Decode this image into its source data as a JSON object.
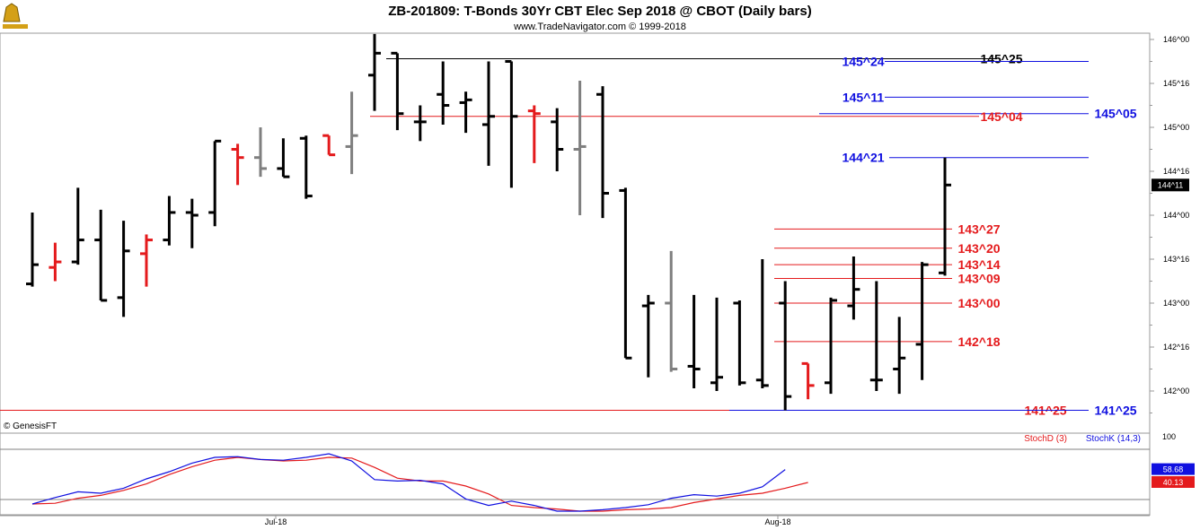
{
  "title": "ZB-201809:  T-Bonds 30Yr CBT Elec Sep 2018 @ CBOT  (Daily bars)",
  "subtitle": "www.TradeNavigator.com © 1999-2018",
  "copyright": "© GenesisFT",
  "colors": {
    "up": "#000000",
    "down": "#e41a1c",
    "flat": "#7f7f7f",
    "red_level": "#e41a1c",
    "blue_level": "#1010e0",
    "stochD": "#e41a1c",
    "stochK": "#1010e0"
  },
  "chart_data": [
    {
      "type": "ohlc",
      "y_unit": "32nds",
      "y_ticks": [
        "142^00",
        "142^16",
        "143^00",
        "143^16",
        "144^00",
        "144^16",
        "145^00",
        "145^16",
        "146^00"
      ],
      "x_ticks": [
        "Jul-18",
        "Aug-18"
      ],
      "last_price": "144^11",
      "bars": [
        {
          "o": "143^07",
          "h": "144^01",
          "l": "143^06",
          "c": "143^14",
          "color": "up"
        },
        {
          "o": "143^13",
          "h": "143^22",
          "l": "143^08",
          "c": "143^15",
          "color": "down"
        },
        {
          "o": "143^15",
          "h": "144^10",
          "l": "143^14",
          "c": "143^23",
          "color": "up"
        },
        {
          "o": "143^23",
          "h": "144^02",
          "l": "143^01",
          "c": "143^01",
          "color": "up"
        },
        {
          "o": "143^02",
          "h": "143^30",
          "l": "142^27",
          "c": "143^19",
          "color": "up"
        },
        {
          "o": "143^18",
          "h": "143^25",
          "l": "143^06",
          "c": "143^23",
          "color": "down"
        },
        {
          "o": "143^23",
          "h": "144^07",
          "l": "143^21",
          "c": "144^01",
          "color": "up"
        },
        {
          "o": "144^01",
          "h": "144^06",
          "l": "143^20",
          "c": "144^00",
          "color": "up"
        },
        {
          "o": "144^01",
          "h": "144^27",
          "l": "143^28",
          "c": "144^27",
          "color": "up"
        },
        {
          "o": "144^24",
          "h": "144^26",
          "l": "144^11",
          "c": "144^21",
          "color": "down"
        },
        {
          "o": "144^21",
          "h": "145^00",
          "l": "144^14",
          "c": "144^17",
          "color": "flat"
        },
        {
          "o": "144^17",
          "h": "144^28",
          "l": "144^14",
          "c": "144^14",
          "color": "up"
        },
        {
          "o": "144^28",
          "h": "144^29",
          "l": "144^06",
          "c": "144^07",
          "color": "up"
        },
        {
          "o": "144^29",
          "h": "144^29",
          "l": "144^22",
          "c": "144^22",
          "color": "down"
        },
        {
          "o": "144^25",
          "h": "145^13",
          "l": "144^15",
          "c": "144^29",
          "color": "flat"
        },
        {
          "o": "145^19",
          "h": "146^02",
          "l": "145^06",
          "c": "145^27",
          "color": "up"
        },
        {
          "o": "145^27",
          "h": "145^27",
          "l": "144^31",
          "c": "145^05",
          "color": "up"
        },
        {
          "o": "145^02",
          "h": "145^08",
          "l": "144^27",
          "c": "145^02",
          "color": "up"
        },
        {
          "o": "145^12",
          "h": "145^24",
          "l": "145^01",
          "c": "145^08",
          "color": "up"
        },
        {
          "o": "145^09",
          "h": "145^13",
          "l": "144^30",
          "c": "145^10",
          "color": "up"
        },
        {
          "o": "145^01",
          "h": "145^24",
          "l": "144^18",
          "c": "145^04",
          "color": "up"
        },
        {
          "o": "145^24",
          "h": "145^24",
          "l": "144^10",
          "c": "145^04",
          "color": "up"
        },
        {
          "o": "145^06",
          "h": "145^08",
          "l": "144^19",
          "c": "145^05",
          "color": "down"
        },
        {
          "o": "145^02",
          "h": "145^07",
          "l": "144^16",
          "c": "144^24",
          "color": "up"
        },
        {
          "o": "144^24",
          "h": "145^17",
          "l": "144^00",
          "c": "144^25",
          "color": "flat"
        },
        {
          "o": "145^12",
          "h": "145^15",
          "l": "143^31",
          "c": "144^08",
          "color": "up"
        },
        {
          "o": "144^09",
          "h": "144^10",
          "l": "142^12",
          "c": "142^12",
          "color": "up"
        },
        {
          "o": "142^31",
          "h": "143^03",
          "l": "142^05",
          "c": "143^00",
          "color": "up"
        },
        {
          "o": "143^00",
          "h": "143^19",
          "l": "142^07",
          "c": "142^08",
          "color": "flat"
        },
        {
          "o": "142^09",
          "h": "143^03",
          "l": "142^01",
          "c": "142^08",
          "color": "up"
        },
        {
          "o": "142^03",
          "h": "143^02",
          "l": "142^00",
          "c": "142^05",
          "color": "up"
        },
        {
          "o": "143^00",
          "h": "143^01",
          "l": "142^02",
          "c": "142^03",
          "color": "up"
        },
        {
          "o": "142^04",
          "h": "143^16",
          "l": "142^01",
          "c": "142^02",
          "color": "up"
        },
        {
          "o": "143^00",
          "h": "143^08",
          "l": "141^25",
          "c": "141^30",
          "color": "up"
        },
        {
          "o": "142^10",
          "h": "142^10",
          "l": "141^29",
          "c": "142^02",
          "color": "down"
        },
        {
          "o": "142^03",
          "h": "143^02",
          "l": "141^31",
          "c": "143^01",
          "color": "up"
        },
        {
          "o": "142^31",
          "h": "143^17",
          "l": "142^26",
          "c": "143^05",
          "color": "up"
        },
        {
          "o": "142^04",
          "h": "143^08",
          "l": "142^00",
          "c": "142^04",
          "color": "up"
        },
        {
          "o": "142^08",
          "h": "142^27",
          "l": "141^31",
          "c": "142^12",
          "color": "up"
        },
        {
          "o": "142^17",
          "h": "143^15",
          "l": "142^04",
          "c": "143^14",
          "color": "up"
        },
        {
          "o": "143^11",
          "h": "144^21",
          "l": "143^10",
          "c": "144^11",
          "color": "up"
        }
      ],
      "levels": [
        {
          "label": "145^25",
          "value": "145^25",
          "color": "black"
        },
        {
          "label": "145^24",
          "value": "145^24",
          "color": "blue"
        },
        {
          "label": "145^11",
          "value": "145^11",
          "color": "blue"
        },
        {
          "label": "145^05",
          "value": "145^05",
          "color": "blue"
        },
        {
          "label": "145^04",
          "value": "145^04",
          "color": "red"
        },
        {
          "label": "144^21",
          "value": "144^21",
          "color": "blue"
        },
        {
          "label": "143^27",
          "value": "143^27",
          "color": "red"
        },
        {
          "label": "143^20",
          "value": "143^20",
          "color": "red"
        },
        {
          "label": "143^14",
          "value": "143^14",
          "color": "red"
        },
        {
          "label": "143^09",
          "value": "143^09",
          "color": "red"
        },
        {
          "label": "143^00",
          "value": "143^00",
          "color": "red"
        },
        {
          "label": "142^18",
          "value": "142^18",
          "color": "red"
        },
        {
          "label": "141^25",
          "value": "141^25",
          "color": "red"
        },
        {
          "label": "141^25",
          "value": "141^25",
          "color": "blue"
        }
      ]
    },
    {
      "type": "line",
      "indicator": "Stochastic",
      "y_tick": "100",
      "series": [
        {
          "name": "StochD (3)",
          "last": "40.13",
          "values": [
            10,
            11,
            18,
            22,
            29,
            38,
            51,
            62,
            71,
            75,
            72,
            70,
            71,
            75,
            74,
            61,
            46,
            42,
            42,
            35,
            24,
            8,
            5,
            3,
            0,
            0,
            2,
            3,
            5,
            12,
            17,
            22,
            25,
            32,
            40
          ]
        },
        {
          "name": "StochK (14,3)",
          "last": "58.68",
          "values": [
            10,
            19,
            27,
            25,
            32,
            45,
            55,
            67,
            75,
            76,
            72,
            71,
            75,
            80,
            70,
            44,
            42,
            43,
            38,
            17,
            8,
            14,
            8,
            0,
            0,
            2,
            5,
            9,
            18,
            23,
            21,
            25,
            34,
            58
          ]
        }
      ]
    }
  ]
}
